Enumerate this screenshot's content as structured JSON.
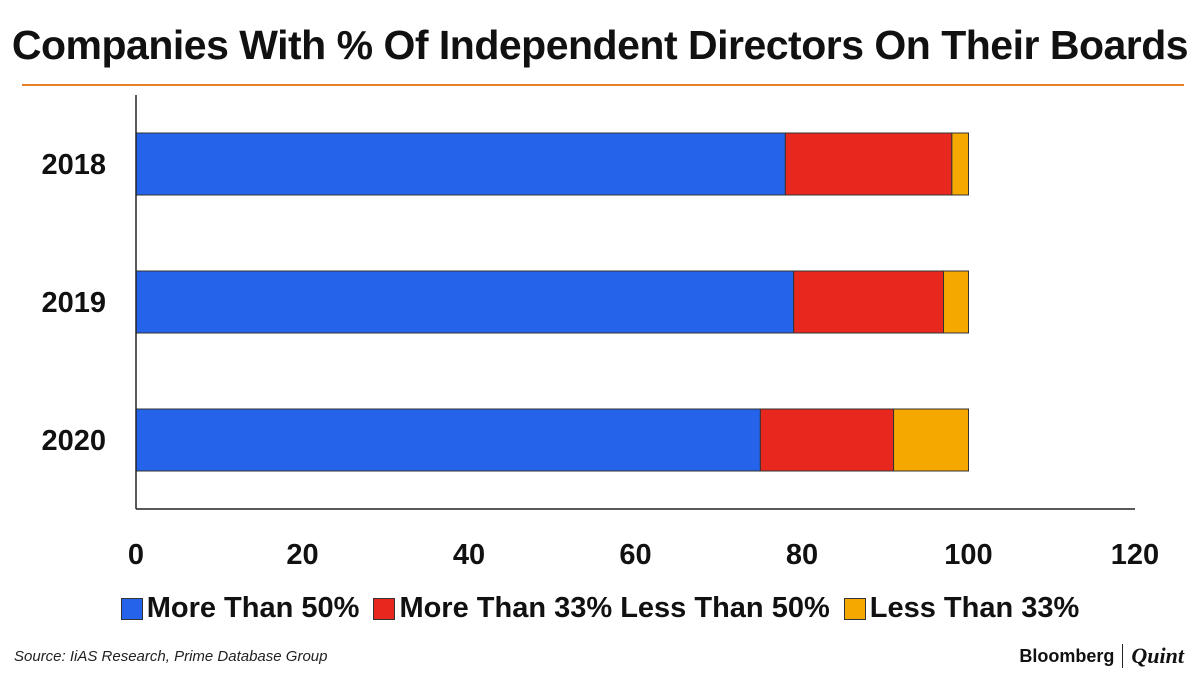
{
  "colors": {
    "accent_rule": "#e8822a",
    "axis": "#222222"
  },
  "brand": {
    "name1": "Bloomberg",
    "name2": "Quint"
  },
  "source": "Source:  IiAS Research, Prime Database Group",
  "chart_data": {
    "type": "bar",
    "orientation": "horizontal",
    "stacked": true,
    "title": "Companies With % Of Independent Directors On Their Boards",
    "categories": [
      "2018",
      "2019",
      "2020"
    ],
    "series": [
      {
        "name": "More Than 50%",
        "color": "#2563eb",
        "values": [
          78,
          79,
          75
        ]
      },
      {
        "name": "More Than 33% Less Than 50%",
        "color": "#e8281f",
        "values": [
          20,
          18,
          16
        ]
      },
      {
        "name": "Less Than 33%",
        "color": "#f5a800",
        "values": [
          2,
          3,
          9
        ]
      }
    ],
    "xlim": [
      0,
      120
    ],
    "xticks": [
      0,
      20,
      40,
      60,
      80,
      100,
      120
    ],
    "grid": false,
    "legend_position": "bottom"
  }
}
